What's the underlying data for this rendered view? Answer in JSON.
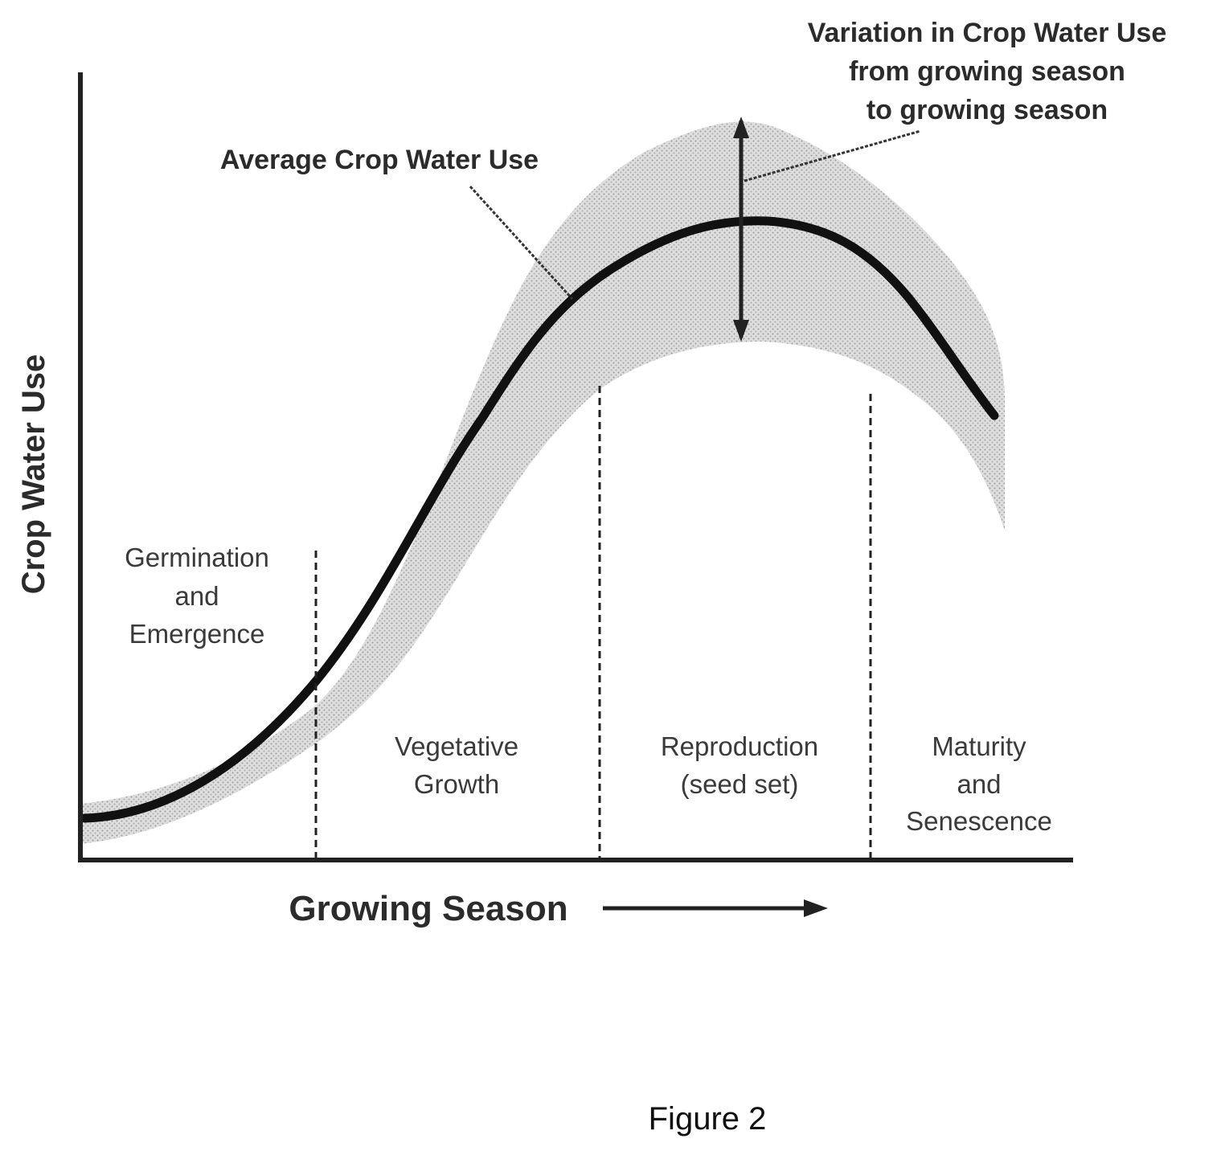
{
  "axes": {
    "y_label": "Crop Water Use",
    "x_label": "Growing Season"
  },
  "annotations": {
    "average": "Average Crop Water Use",
    "variation": [
      "Variation in Crop Water Use",
      "from growing season",
      "to growing season"
    ]
  },
  "stages": [
    {
      "lines": [
        "Germination",
        "and",
        "Emergence"
      ]
    },
    {
      "lines": [
        "Vegetative",
        "Growth"
      ]
    },
    {
      "lines": [
        "Reproduction",
        "(seed set)"
      ]
    },
    {
      "lines": [
        "Maturity",
        "and",
        "Senescence"
      ]
    }
  ],
  "caption": "Figure 2",
  "colors": {
    "curve": "#111111",
    "band": "#c8c8c8",
    "axis": "#222222"
  }
}
